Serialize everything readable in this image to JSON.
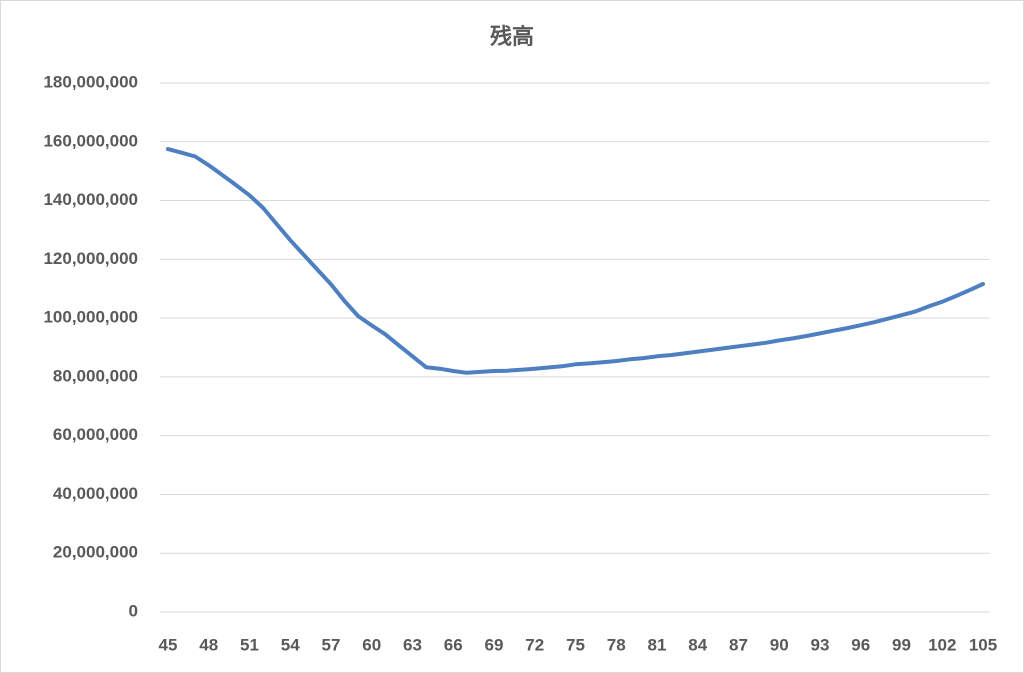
{
  "chart_data": {
    "type": "line",
    "title": "残高",
    "x": [
      45,
      46,
      47,
      48,
      49,
      50,
      51,
      52,
      53,
      54,
      55,
      56,
      57,
      58,
      59,
      60,
      61,
      62,
      63,
      64,
      65,
      66,
      67,
      68,
      69,
      70,
      71,
      72,
      73,
      74,
      75,
      76,
      77,
      78,
      79,
      80,
      81,
      82,
      83,
      84,
      85,
      86,
      87,
      88,
      89,
      90,
      91,
      92,
      93,
      94,
      95,
      96,
      97,
      98,
      99,
      100,
      101,
      102,
      103,
      104,
      105
    ],
    "series": [
      {
        "name": "残高",
        "color": "#4e7fc0",
        "values": [
          157500000,
          156300000,
          155000000,
          152000000,
          148700000,
          145300000,
          141800000,
          137500000,
          132000000,
          126500000,
          121500000,
          116500000,
          111500000,
          105800000,
          100700000,
          97500000,
          94500000,
          90700000,
          87000000,
          83300000,
          82800000,
          82000000,
          81400000,
          81700000,
          82000000,
          82100000,
          82400000,
          82800000,
          83200000,
          83600000,
          84300000,
          84600000,
          85000000,
          85400000,
          86000000,
          86400000,
          87000000,
          87400000,
          88000000,
          88600000,
          89200000,
          89800000,
          90400000,
          91000000,
          91600000,
          92400000,
          93100000,
          93900000,
          94800000,
          95700000,
          96600000,
          97600000,
          98600000,
          99800000,
          101000000,
          102200000,
          104000000,
          105600000,
          107500000,
          109500000,
          111600000
        ]
      }
    ],
    "xlim": [
      45,
      105
    ],
    "xticks": [
      45,
      48,
      51,
      54,
      57,
      60,
      63,
      66,
      69,
      72,
      75,
      78,
      81,
      84,
      87,
      90,
      93,
      96,
      99,
      102,
      105
    ],
    "ylim": [
      0,
      180000000
    ],
    "yticks": [
      0,
      {
        "value": 20000000,
        "label": "20,000,000"
      },
      {
        "value": 40000000,
        "label": "40,000,000"
      },
      {
        "value": 60000000,
        "label": "60,000,000"
      },
      {
        "value": 80000000,
        "label": "80,000,000"
      },
      {
        "value": 100000000,
        "label": "100,000,000"
      },
      {
        "value": 120000000,
        "label": "120,000,000"
      },
      {
        "value": 140000000,
        "label": "140,000,000"
      },
      {
        "value": 160000000,
        "label": "160,000,000"
      },
      {
        "value": 180000000,
        "label": "180,000,000"
      }
    ],
    "grid": true
  }
}
